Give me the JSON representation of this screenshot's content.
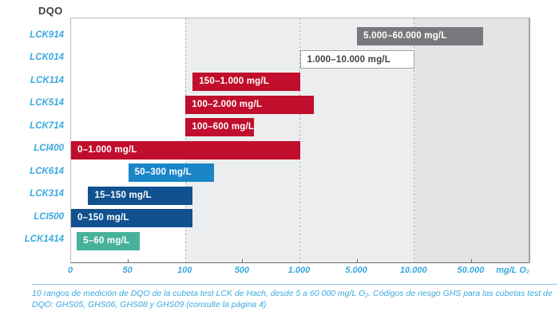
{
  "title": "DQO",
  "caption": "10 rangos de medición de DQO de la cubeta test LCK de Hach, desde 5 a 60 000 mg/L O₂. Códigos de riesgo GHS para las cubetas test de DQO: GHS05, GHS06, GHS08 y GHS09 (consulte la página 4)",
  "colors": {
    "red": "#c00e2c",
    "light_blue": "#1a86c8",
    "dark_blue": "#11518f",
    "teal": "#47b29a",
    "gray": "#77787b",
    "label_blue": "#3aa9e0",
    "dark_text": "#414042"
  },
  "chart_data": {
    "type": "bar",
    "orientation": "horizontal",
    "x_axis": {
      "scale": "log-like, ticks evenly spaced",
      "min": 0,
      "max": 100000,
      "tick_values": [
        0,
        50,
        100,
        500,
        1000,
        5000,
        10000,
        50000,
        100000
      ],
      "ticks": [
        {
          "label": "0",
          "value": 0,
          "minor_tick": false
        },
        {
          "label": "50",
          "value": 50,
          "minor_tick": true
        },
        {
          "label": "100",
          "value": 100,
          "minor_tick": false
        },
        {
          "label": "500",
          "value": 500,
          "minor_tick": true
        },
        {
          "label": "1.000",
          "value": 1000,
          "minor_tick": false
        },
        {
          "label": "5.000",
          "value": 5000,
          "minor_tick": true
        },
        {
          "label": "10.000",
          "value": 10000,
          "minor_tick": false
        },
        {
          "label": "50.000",
          "value": 50000,
          "minor_tick": true
        }
      ],
      "unit_label": "mg/L O₂",
      "gridlines_at": [
        100,
        1000,
        10000
      ],
      "grid_style": "dotted"
    },
    "background_bands": [
      {
        "from": 0,
        "to": 100,
        "color": "#ffffff"
      },
      {
        "from": 100,
        "to": 10000,
        "color": "#ecedee"
      },
      {
        "from": 10000,
        "to": 100000,
        "color": "#e3e4e6"
      }
    ],
    "rows": [
      {
        "test": "LCK914",
        "range_label": "5.000–60.000 mg/L",
        "min": 5000,
        "max": 60000,
        "color": "#77787b",
        "text_color": "#ffffff",
        "border": null
      },
      {
        "test": "LCK014",
        "range_label": "1.000–10.000 mg/L",
        "min": 1000,
        "max": 10000,
        "color": "#ffffff",
        "text_color": "#414042",
        "border": "#9fa1a4"
      },
      {
        "test": "LCK114",
        "range_label": "150–1.000 mg/L",
        "min": 150,
        "max": 1000,
        "color": "#c00e2c",
        "text_color": "#ffffff",
        "border": null
      },
      {
        "test": "LCK514",
        "range_label": "100–2.000 mg/L",
        "min": 100,
        "max": 2000,
        "color": "#c00e2c",
        "text_color": "#ffffff",
        "border": null
      },
      {
        "test": "LCK714",
        "range_label": "100–600 mg/L",
        "min": 100,
        "max": 600,
        "color": "#c00e2c",
        "text_color": "#ffffff",
        "border": null
      },
      {
        "test": "LCI400",
        "range_label": "0–1.000 mg/L",
        "min": 0,
        "max": 1000,
        "color": "#c00e2c",
        "text_color": "#ffffff",
        "border": null
      },
      {
        "test": "LCK614",
        "range_label": "50–300 mg/L",
        "min": 50,
        "max": 300,
        "color": "#1a86c8",
        "text_color": "#ffffff",
        "border": null
      },
      {
        "test": "LCK314",
        "range_label": "15–150 mg/L",
        "min": 15,
        "max": 150,
        "color": "#11518f",
        "text_color": "#ffffff",
        "border": null
      },
      {
        "test": "LCI500",
        "range_label": "0–150 mg/L",
        "min": 0,
        "max": 150,
        "color": "#11518f",
        "text_color": "#ffffff",
        "border": null
      },
      {
        "test": "LCK1414",
        "range_label": "5–60 mg/L",
        "min": 5,
        "max": 60,
        "color": "#47b29a",
        "text_color": "#ffffff",
        "border": null
      }
    ]
  }
}
